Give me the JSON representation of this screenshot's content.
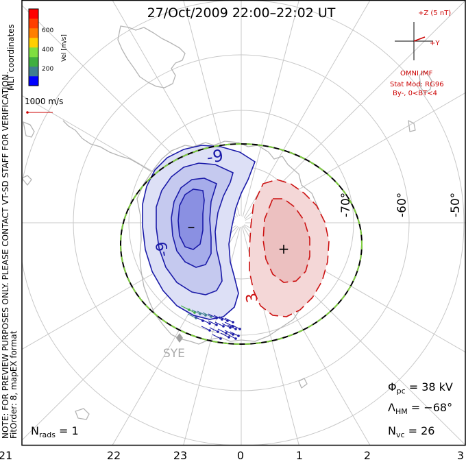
{
  "title": "27/Oct/2009 22:00–22:02 UT",
  "colorbar": {
    "unit_label": "Vel [m/s]",
    "ticks": [
      "600",
      "400",
      "200"
    ],
    "colors": [
      "#0000ff",
      "#3f7f8f",
      "#3faf3f",
      "#7fdf3f",
      "#ffcf00",
      "#ff7f00",
      "#ff3f00",
      "#ff0000"
    ]
  },
  "coord_label": "MLT coordinates",
  "velocity_scale": "1000 m/s",
  "disclaimer": "NOTE: FOR PREVIEW PURPOSES ONLY. PLEASE CONTACT VT-SD STAFF FOR VERIFICATION.",
  "fit_order": "FitOrder: 8, mapEX format",
  "imf": {
    "z_label": "+Z (5 nT)",
    "y_label": "+Y",
    "source": "OMNI IMF",
    "stat_mod": "Stat Mod: RG96",
    "conditions": "By-, 0<BT<4",
    "color": "#cc0000"
  },
  "lat_labels": [
    "-70°",
    "-60°",
    "-50°"
  ],
  "mlt_labels": [
    "21",
    "22",
    "23",
    "0",
    "1",
    "2",
    "3"
  ],
  "contour_labels": {
    "neg": "-9",
    "neg2": "-9",
    "pos": "3"
  },
  "minmax": {
    "min_symbol": "–",
    "max_symbol": "+"
  },
  "station": "SYE",
  "stats": {
    "phi_pc_label": "Φ",
    "phi_pc_sub": "pc",
    "phi_pc_value": " = 38 kV",
    "lambda_label": "Λ",
    "lambda_sub": "HM",
    "lambda_value": " = −68°",
    "nvc_label": "N",
    "nvc_sub": "vc",
    "nvc_value": " = 26",
    "nrads_label": "N",
    "nrads_sub": "rads",
    "nrads_value": " = 1"
  },
  "colors": {
    "neg_cell": "#1a1aa8",
    "pos_cell": "#cc1111",
    "boundary": "#7fcf3f",
    "grid": "#c8c8c8",
    "coast": "#b4b4b4"
  }
}
